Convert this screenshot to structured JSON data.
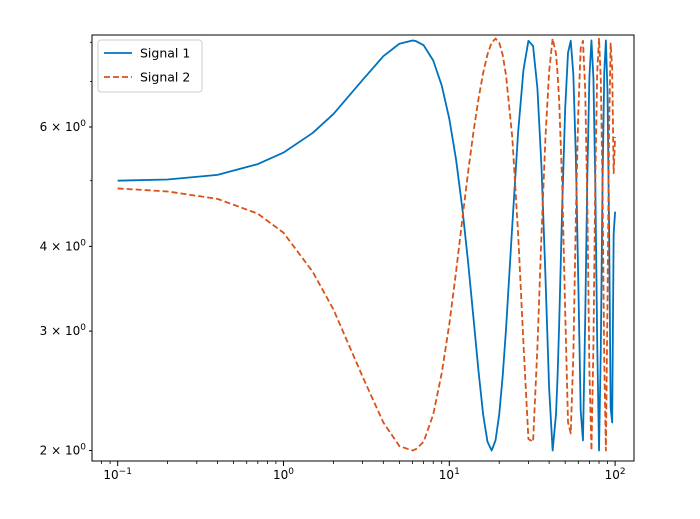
{
  "chart_data": {
    "type": "line",
    "title": "",
    "xlabel": "",
    "ylabel": "",
    "xscale": "log",
    "yscale": "log",
    "xlim": [
      0.07,
      130
    ],
    "ylim": [
      1.93,
      8.2
    ],
    "x_ticks": [
      {
        "value": 0.1,
        "base": "10",
        "exp": "−1"
      },
      {
        "value": 1,
        "base": "10",
        "exp": "0"
      },
      {
        "value": 10,
        "base": "10",
        "exp": "1"
      },
      {
        "value": 100,
        "base": "10",
        "exp": "2"
      }
    ],
    "y_ticks": [
      {
        "value": 2,
        "coef": "2",
        "base": "10",
        "exp": "0"
      },
      {
        "value": 3,
        "coef": "3",
        "base": "10",
        "exp": "0"
      },
      {
        "value": 4,
        "coef": "4",
        "base": "10",
        "exp": "0"
      },
      {
        "value": 6,
        "coef": "6",
        "base": "10",
        "exp": "0"
      }
    ],
    "grid": false,
    "legend_position": "top-left",
    "series": [
      {
        "name": "Signal 1",
        "color": "#0072BD",
        "dash": "solid",
        "x": [
          0.1,
          0.2,
          0.4,
          0.7,
          1.0,
          1.5,
          2.0,
          3.0,
          4.0,
          5.0,
          6.0,
          6.3,
          7.0,
          8.0,
          9.0,
          10,
          11,
          12,
          13,
          14,
          15,
          16,
          17,
          18,
          19,
          20,
          21,
          22,
          24,
          26,
          28,
          30,
          32,
          34,
          36,
          38,
          40,
          42,
          44,
          45,
          46,
          48,
          50,
          52,
          54,
          56,
          58,
          60,
          62,
          64,
          66,
          68,
          70,
          72,
          74,
          76,
          78,
          80,
          82,
          84,
          86,
          88,
          90,
          92,
          94,
          96,
          98,
          100
        ],
        "y": [
          5.0,
          5.02,
          5.1,
          5.29,
          5.5,
          5.88,
          6.27,
          7.04,
          7.63,
          7.96,
          8.05,
          8.03,
          7.92,
          7.52,
          6.91,
          6.17,
          5.36,
          4.54,
          3.78,
          3.13,
          2.62,
          2.26,
          2.06,
          2.0,
          2.07,
          2.26,
          2.58,
          3.03,
          4.31,
          5.89,
          7.28,
          8.04,
          7.9,
          6.84,
          5.22,
          3.62,
          2.47,
          2.0,
          2.26,
          2.58,
          3.08,
          4.61,
          6.39,
          7.72,
          8.04,
          7.17,
          5.4,
          3.53,
          2.29,
          2.07,
          3.11,
          5.09,
          7.12,
          8.05,
          7.08,
          4.9,
          2.88,
          2.0,
          2.84,
          4.98,
          7.21,
          8.05,
          6.74,
          4.25,
          2.31,
          2.2,
          4.17,
          4.5
        ]
      },
      {
        "name": "Signal 2",
        "color": "#D95319",
        "dash": "dashed",
        "x": [
          0.1,
          0.2,
          0.4,
          0.7,
          1.0,
          1.5,
          2.0,
          3.0,
          4.0,
          5.0,
          6.0,
          6.3,
          7.0,
          8.0,
          9.0,
          10,
          11,
          12,
          13,
          14,
          15,
          16,
          17,
          18,
          19,
          20,
          21,
          22,
          24,
          26,
          28,
          30,
          32,
          34,
          36,
          38,
          40,
          42,
          44,
          45,
          46,
          48,
          50,
          52,
          54,
          56,
          58,
          60,
          62,
          64,
          66,
          68,
          70,
          72,
          74,
          76,
          78,
          80,
          82,
          84,
          86,
          88,
          90,
          92,
          94,
          96,
          98,
          100
        ],
        "y": [
          4.87,
          4.82,
          4.7,
          4.47,
          4.19,
          3.67,
          3.23,
          2.57,
          2.2,
          2.03,
          2.0,
          2.01,
          2.06,
          2.26,
          2.6,
          3.07,
          3.68,
          4.4,
          5.16,
          5.91,
          6.6,
          7.21,
          7.68,
          7.99,
          8.1,
          7.99,
          7.66,
          7.14,
          5.78,
          4.18,
          2.88,
          2.08,
          2.06,
          2.84,
          4.19,
          5.78,
          7.24,
          8.1,
          7.7,
          7.17,
          6.55,
          4.9,
          3.21,
          2.2,
          2.12,
          2.77,
          4.45,
          6.32,
          7.84,
          8.04,
          6.81,
          4.61,
          2.62,
          2.0,
          2.86,
          5.09,
          7.24,
          8.1,
          7.02,
          4.86,
          2.7,
          2.0,
          3.36,
          5.92,
          7.97,
          7.31,
          5.13,
          5.8
        ]
      }
    ]
  }
}
